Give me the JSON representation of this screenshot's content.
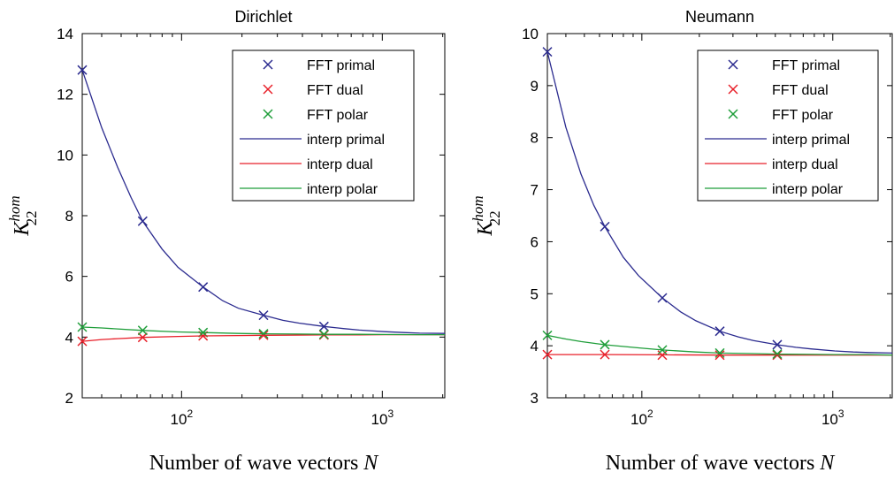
{
  "chart_data": [
    {
      "type": "line",
      "title": "Dirichlet",
      "xlabel": "Number of wave vectors",
      "xlabel_var": "N",
      "ylabel": "K",
      "ylabel_sup": "hom",
      "ylabel_sub": "22",
      "xscale": "log",
      "xlim": [
        32,
        2048
      ],
      "ylim": [
        2,
        14
      ],
      "yticks": [
        2,
        4,
        6,
        8,
        10,
        12,
        14
      ],
      "xticks": [
        {
          "value": 100,
          "base": "10",
          "exp": "2"
        },
        {
          "value": 1000,
          "base": "10",
          "exp": "3"
        }
      ],
      "legend_position": "top-right",
      "grid": false,
      "series": [
        {
          "name": "FFT primal",
          "kind": "marker",
          "color": "#2b2b8f",
          "x": [
            32,
            64,
            128,
            256,
            512
          ],
          "y": [
            12.8,
            7.82,
            5.65,
            4.72,
            4.35
          ]
        },
        {
          "name": "FFT dual",
          "kind": "marker",
          "color": "#e8202a",
          "x": [
            32,
            64,
            128,
            256,
            512
          ],
          "y": [
            3.86,
            3.99,
            4.04,
            4.06,
            4.07
          ]
        },
        {
          "name": "FFT polar",
          "kind": "marker",
          "color": "#1f9e3a",
          "x": [
            32,
            64,
            128,
            256,
            512
          ],
          "y": [
            4.33,
            4.22,
            4.15,
            4.11,
            4.09
          ]
        },
        {
          "name": "interp primal",
          "kind": "line",
          "color": "#2b2b8f",
          "x": [
            32,
            40,
            48,
            56,
            64,
            80,
            96,
            128,
            160,
            192,
            256,
            320,
            384,
            512,
            640,
            768,
            1024,
            1280,
            1536,
            2048
          ],
          "y": [
            12.8,
            10.9,
            9.6,
            8.6,
            7.82,
            6.9,
            6.3,
            5.65,
            5.2,
            4.95,
            4.72,
            4.55,
            4.46,
            4.35,
            4.28,
            4.23,
            4.18,
            4.15,
            4.13,
            4.12
          ]
        },
        {
          "name": "interp dual",
          "kind": "line",
          "color": "#e8202a",
          "x": [
            32,
            40,
            48,
            64,
            96,
            128,
            192,
            256,
            384,
            512,
            768,
            1024,
            1536,
            2048
          ],
          "y": [
            3.86,
            3.92,
            3.95,
            3.99,
            4.02,
            4.04,
            4.05,
            4.06,
            4.065,
            4.07,
            4.075,
            4.08,
            4.08,
            4.08
          ]
        },
        {
          "name": "interp polar",
          "kind": "line",
          "color": "#1f9e3a",
          "x": [
            32,
            40,
            48,
            64,
            96,
            128,
            192,
            256,
            384,
            512,
            768,
            1024,
            1536,
            2048
          ],
          "y": [
            4.33,
            4.3,
            4.27,
            4.22,
            4.17,
            4.15,
            4.12,
            4.11,
            4.1,
            4.09,
            4.09,
            4.085,
            4.08,
            4.08
          ]
        }
      ]
    },
    {
      "type": "line",
      "title": "Neumann",
      "xlabel": "Number of wave vectors",
      "xlabel_var": "N",
      "ylabel": "K",
      "ylabel_sup": "hom",
      "ylabel_sub": "22",
      "xscale": "log",
      "xlim": [
        32,
        2048
      ],
      "ylim": [
        3,
        10
      ],
      "yticks": [
        3,
        4,
        5,
        6,
        7,
        8,
        9,
        10
      ],
      "xticks": [
        {
          "value": 100,
          "base": "10",
          "exp": "2"
        },
        {
          "value": 1000,
          "base": "10",
          "exp": "3"
        }
      ],
      "legend_position": "top-right",
      "grid": false,
      "series": [
        {
          "name": "FFT primal",
          "kind": "marker",
          "color": "#2b2b8f",
          "x": [
            32,
            64,
            128,
            256,
            512
          ],
          "y": [
            9.65,
            6.29,
            4.92,
            4.28,
            4.02
          ]
        },
        {
          "name": "FFT dual",
          "kind": "marker",
          "color": "#e8202a",
          "x": [
            32,
            64,
            128,
            256,
            512
          ],
          "y": [
            3.83,
            3.83,
            3.82,
            3.82,
            3.82
          ]
        },
        {
          "name": "FFT polar",
          "kind": "marker",
          "color": "#1f9e3a",
          "x": [
            32,
            64,
            128,
            256,
            512
          ],
          "y": [
            4.2,
            4.02,
            3.92,
            3.86,
            3.84
          ]
        },
        {
          "name": "interp primal",
          "kind": "line",
          "color": "#2b2b8f",
          "x": [
            32,
            40,
            48,
            56,
            64,
            80,
            96,
            128,
            160,
            192,
            256,
            320,
            384,
            512,
            640,
            768,
            1024,
            1280,
            1536,
            2048
          ],
          "y": [
            9.65,
            8.2,
            7.3,
            6.7,
            6.29,
            5.7,
            5.35,
            4.92,
            4.65,
            4.48,
            4.28,
            4.17,
            4.1,
            4.02,
            3.97,
            3.94,
            3.9,
            3.88,
            3.87,
            3.86
          ]
        },
        {
          "name": "interp dual",
          "kind": "line",
          "color": "#e8202a",
          "x": [
            32,
            64,
            128,
            256,
            512,
            1024,
            2048
          ],
          "y": [
            3.83,
            3.83,
            3.825,
            3.82,
            3.82,
            3.82,
            3.82
          ]
        },
        {
          "name": "interp polar",
          "kind": "line",
          "color": "#1f9e3a",
          "x": [
            32,
            40,
            48,
            64,
            96,
            128,
            192,
            256,
            384,
            512,
            768,
            1024,
            1536,
            2048
          ],
          "y": [
            4.2,
            4.13,
            4.08,
            4.02,
            3.96,
            3.92,
            3.88,
            3.86,
            3.85,
            3.84,
            3.835,
            3.83,
            3.83,
            3.82
          ]
        }
      ]
    }
  ]
}
